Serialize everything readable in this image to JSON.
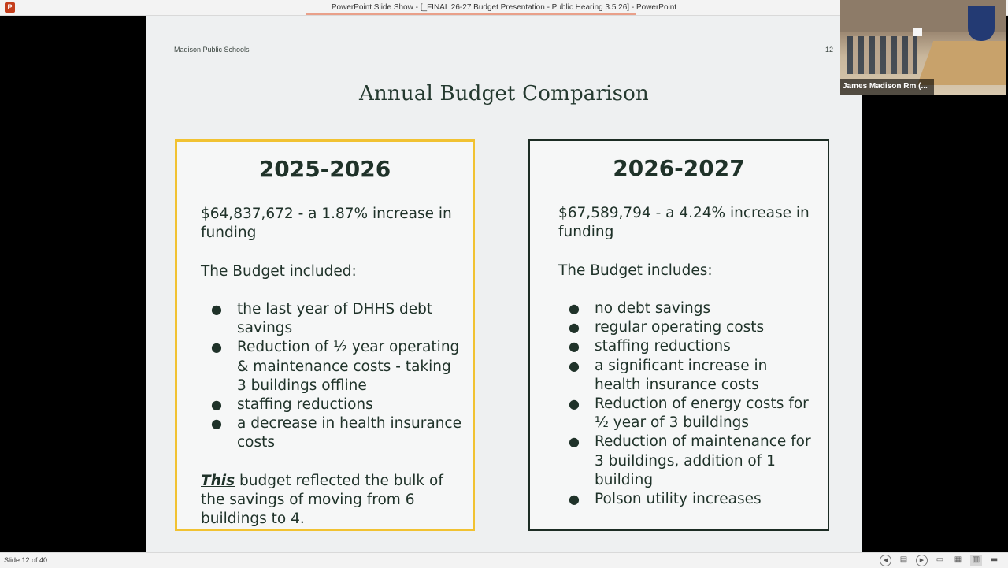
{
  "window": {
    "title": "PowerPoint Slide Show - [_FINAL  26-27 Budget Presentation - Public Hearing 3.5.26] - PowerPoint",
    "app_icon": "powerpoint-icon",
    "app_icon_letter": "P"
  },
  "slide": {
    "org": "Madison Public Schools",
    "number": "12",
    "title": "Annual Budget Comparison",
    "left": {
      "heading": "2025-2026",
      "amount": "$64,837,672 - a 1.87% increase in funding",
      "intro": "The Budget included:",
      "bullets": [
        "the last year of DHHS debt savings",
        "Reduction of ½ year operating & maintenance costs - taking 3 buildings offline",
        "staffing reductions",
        "a decrease in health insurance costs"
      ],
      "closing_em": "This",
      "closing_rest": " budget reflected the bulk of the savings of moving from 6 buildings to 4."
    },
    "right": {
      "heading": "2026-2027",
      "amount": "$67,589,794 - a 4.24% increase in funding",
      "intro": "The Budget includes:",
      "bullets": [
        "no debt savings",
        "regular operating costs",
        "staffing reductions",
        "a significant increase in health insurance costs",
        "Reduction of energy costs for ½ year of 3 buildings",
        "Reduction of maintenance for 3 buildings, addition of 1 building",
        "Polson utility increases"
      ]
    },
    "bullet_glyph": "●"
  },
  "video": {
    "label": "James Madison Rm (..."
  },
  "statusbar": {
    "slide_count": "Slide 12 of 40",
    "prev_glyph": "◀",
    "next_glyph": "▶",
    "menu_glyph": "▤",
    "normal_glyph": "▭",
    "sorter_glyph": "▦",
    "reading_glyph": "▥",
    "show_glyph": "▬"
  },
  "colors": {
    "left_card_border": "#f1c232",
    "right_card_border": "#1c2c24",
    "text": "#1f3229"
  }
}
